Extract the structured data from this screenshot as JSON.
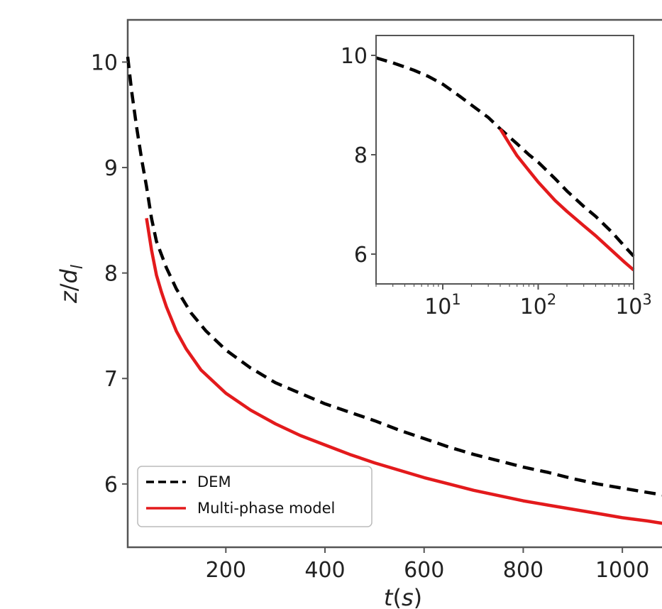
{
  "chart_data": [
    {
      "type": "line",
      "xlabel": "t(s)",
      "ylabel": "z/d_l",
      "xlim": [
        2,
        1090
      ],
      "ylim": [
        5.4,
        10.4
      ],
      "xticks": [
        200,
        400,
        600,
        800,
        1000
      ],
      "yticks": [
        6,
        7,
        8,
        9,
        10
      ],
      "grid": false,
      "legend": "lower-left",
      "series": [
        {
          "name": "DEM",
          "color": "#000000",
          "style": "dashed",
          "x": [
            2,
            10,
            20,
            30,
            40,
            50,
            60,
            80,
            100,
            130,
            160,
            200,
            250,
            300,
            350,
            400,
            450,
            500,
            550,
            600,
            650,
            700,
            750,
            800,
            850,
            900,
            950,
            1000,
            1050,
            1090
          ],
          "y": [
            10.05,
            9.72,
            9.38,
            9.08,
            8.82,
            8.52,
            8.3,
            8.05,
            7.85,
            7.62,
            7.45,
            7.27,
            7.1,
            6.96,
            6.86,
            6.76,
            6.68,
            6.6,
            6.51,
            6.43,
            6.35,
            6.28,
            6.22,
            6.16,
            6.11,
            6.05,
            6.0,
            5.96,
            5.92,
            5.89
          ]
        },
        {
          "name": "Multi-phase model",
          "color": "#e31a1c",
          "style": "solid",
          "x": [
            40,
            50,
            60,
            70,
            80,
            100,
            120,
            150,
            200,
            250,
            300,
            350,
            400,
            450,
            500,
            550,
            600,
            650,
            700,
            750,
            800,
            850,
            900,
            950,
            1000,
            1050,
            1090
          ],
          "y": [
            8.52,
            8.22,
            7.98,
            7.82,
            7.68,
            7.45,
            7.28,
            7.08,
            6.86,
            6.7,
            6.57,
            6.46,
            6.37,
            6.28,
            6.2,
            6.13,
            6.06,
            6.0,
            5.94,
            5.89,
            5.84,
            5.8,
            5.76,
            5.72,
            5.68,
            5.65,
            5.62
          ]
        }
      ]
    },
    {
      "type": "line",
      "xscale": "log",
      "xlim": [
        2,
        1000
      ],
      "ylim": [
        5.4,
        10.4
      ],
      "xticks": [
        "10^1",
        "10^2",
        "10^3"
      ],
      "yticks": [
        6,
        8,
        10
      ],
      "grid": false,
      "series": [
        {
          "name": "DEM",
          "color": "#000000",
          "style": "dashed",
          "x": [
            2,
            3,
            5,
            7,
            10,
            15,
            20,
            30,
            40,
            60,
            80,
            100,
            150,
            200,
            300,
            400,
            600,
            800,
            1000
          ],
          "y": [
            9.95,
            9.85,
            9.7,
            9.58,
            9.42,
            9.18,
            9.0,
            8.75,
            8.52,
            8.22,
            8.0,
            7.85,
            7.52,
            7.27,
            6.96,
            6.76,
            6.43,
            6.16,
            5.96
          ]
        },
        {
          "name": "Multi-phase model",
          "color": "#e31a1c",
          "style": "solid",
          "x": [
            40,
            50,
            60,
            80,
            100,
            150,
            200,
            300,
            400,
            600,
            800,
            1000
          ],
          "y": [
            8.52,
            8.22,
            7.98,
            7.68,
            7.45,
            7.08,
            6.86,
            6.57,
            6.37,
            6.06,
            5.84,
            5.68
          ]
        }
      ]
    }
  ],
  "labels": {
    "x_main": "t",
    "x_paren_open": "(",
    "x_unit": "s",
    "x_paren_close": ")",
    "y_main": "z",
    "y_slash": "/",
    "y_d": "d",
    "y_sub": "l",
    "legend_dem": "DEM",
    "legend_model": "Multi-phase model",
    "inset_x_ticks": [
      {
        "base": "10",
        "exp": "1"
      },
      {
        "base": "10",
        "exp": "2"
      },
      {
        "base": "10",
        "exp": "3"
      }
    ]
  }
}
